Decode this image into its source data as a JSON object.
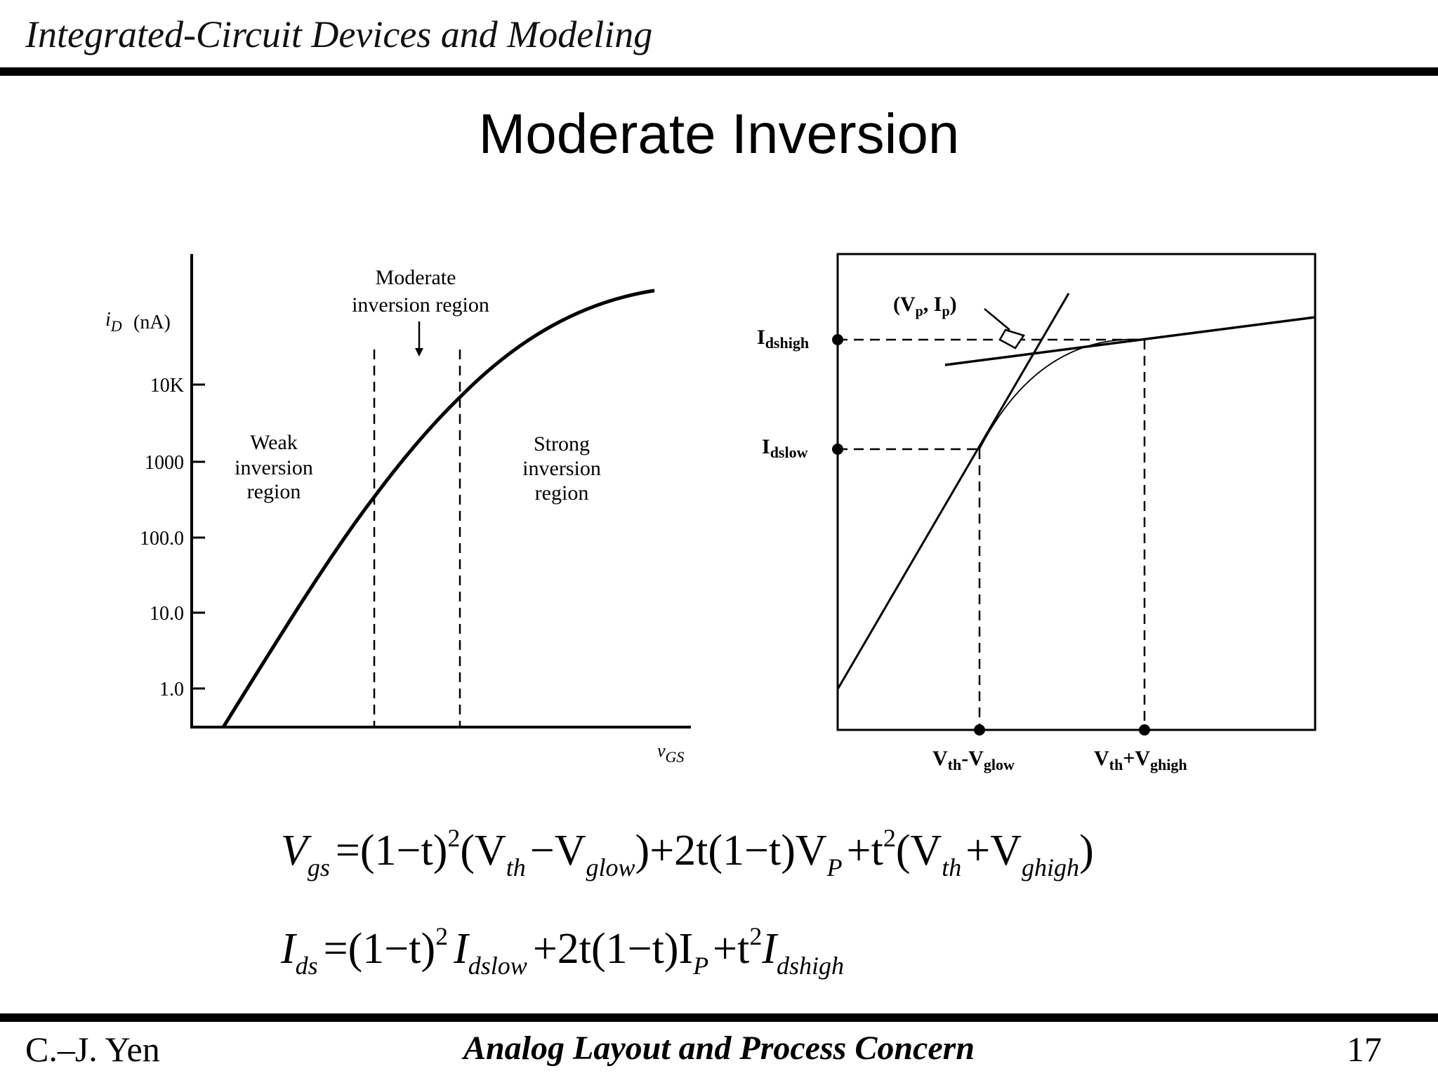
{
  "header": {
    "course_title": "Integrated-Circuit Devices and Modeling"
  },
  "slide": {
    "title": "Moderate Inversion"
  },
  "left_figure": {
    "y_axis_label": "i",
    "y_axis_label_sub": "D",
    "y_axis_unit": "(nA)",
    "y_ticks": [
      "10K",
      "1000",
      "100.0",
      "10.0",
      "1.0"
    ],
    "x_axis_label": "v",
    "x_axis_label_sub": "GS",
    "moderate_label_line1": "Moderate",
    "moderate_label_line2": "inversion region",
    "weak_label": [
      "Weak",
      "inversion",
      "region"
    ],
    "strong_label": [
      "Strong",
      "inversion",
      "region"
    ]
  },
  "right_figure": {
    "point_label": "(V",
    "point_label_sub1": "p",
    "point_label_mid": ", I",
    "point_label_sub2": "p",
    "point_label_end": ")",
    "idshigh_main": "I",
    "idshigh_sub": "dshigh",
    "idslow_main": "I",
    "idslow_sub": "dslow",
    "vlow_main": "V",
    "vlow_sub1": "th",
    "vlow_mid": "-V",
    "vlow_sub2": "glow",
    "vhigh_main": "V",
    "vhigh_sub1": "th",
    "vhigh_mid": "+V",
    "vhigh_sub2": "ghigh"
  },
  "equations": {
    "eq1": {
      "lhs": "V",
      "lhs_sub": "gs",
      "t1": "=(1−t)",
      "sup1": "2",
      "t2": "(V",
      "sub_th1": "th",
      "t3": "−V",
      "sub_glow": "glow",
      "t4": ")+2t(1−t)V",
      "sub_P": "P",
      "t5": "+t",
      "sup2": "2",
      "t6": "(V",
      "sub_th2": "th",
      "t7": "+V",
      "sub_ghigh": "ghigh",
      "t8": ")"
    },
    "eq2": {
      "lhs": "I",
      "lhs_sub": "ds",
      "t1": "=(1−t)",
      "sup1": "2",
      "t2": "I",
      "sub_dslow": "dslow",
      "t3": "+2t(1−t)I",
      "sub_P": "P",
      "t4": "+t",
      "sup2": "2",
      "t5": "I",
      "sub_dshigh": "dshigh"
    }
  },
  "footer": {
    "author": "C.–J. Yen",
    "subject": "Analog Layout and Process Concern",
    "page_number": "17"
  }
}
